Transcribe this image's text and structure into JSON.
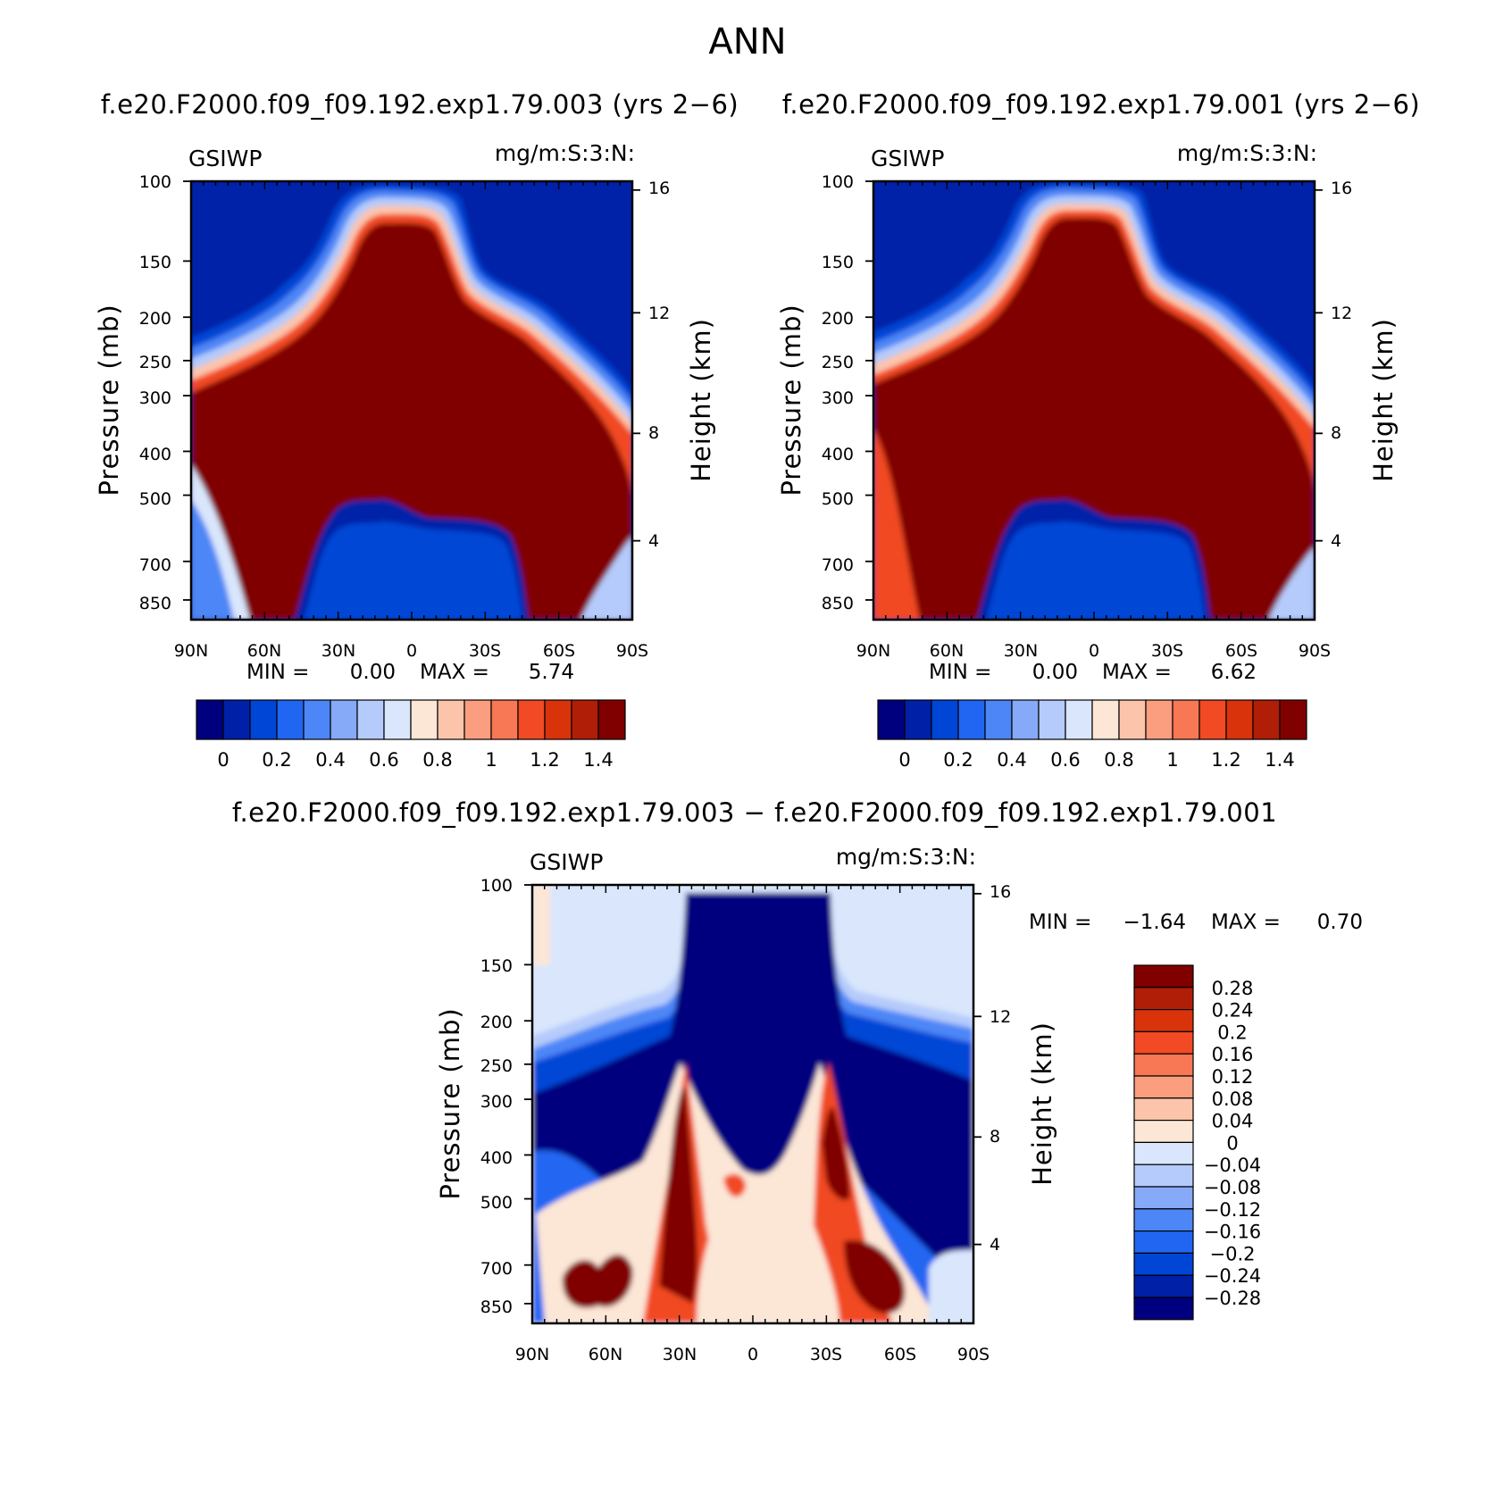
{
  "figure": {
    "title": "ANN"
  },
  "panels": [
    {
      "id": "top-left",
      "subtitle": "f.e20.F2000.f09_f09.192.exp1.79.003 (yrs 2−6)",
      "left_string": "GSIWP",
      "right_string": "mg/m:S:3:N:",
      "stats": {
        "min_label": "MIN =",
        "min": "0.00",
        "max_label": "MAX =",
        "max": "5.74"
      },
      "colorbar_labels": [
        "0",
        "0.2",
        "0.4",
        "0.6",
        "0.8",
        "1",
        "1.2",
        "1.4"
      ]
    },
    {
      "id": "top-right",
      "subtitle": "f.e20.F2000.f09_f09.192.exp1.79.001 (yrs 2−6)",
      "left_string": "GSIWP",
      "right_string": "mg/m:S:3:N:",
      "stats": {
        "min_label": "MIN =",
        "min": "0.00",
        "max_label": "MAX =",
        "max": "6.62"
      },
      "colorbar_labels": [
        "0",
        "0.2",
        "0.4",
        "0.6",
        "0.8",
        "1",
        "1.2",
        "1.4"
      ]
    },
    {
      "id": "difference",
      "subtitle": "f.e20.F2000.f09_f09.192.exp1.79.003 − f.e20.F2000.f09_f09.192.exp1.79.001",
      "left_string": "GSIWP",
      "right_string": "mg/m:S:3:N:",
      "stats": {
        "min_label": "MIN =",
        "min": "−1.64",
        "max_label": "MAX =",
        "max": "0.70"
      },
      "colorbar_labels": [
        "0.28",
        "0.24",
        "0.2",
        "0.16",
        "0.12",
        "0.08",
        "0.04",
        "0",
        "−0.04",
        "−0.08",
        "−0.12",
        "−0.16",
        "−0.2",
        "−0.24",
        "−0.28"
      ]
    }
  ],
  "axes": {
    "xlabels": [
      "90N",
      "60N",
      "30N",
      "0",
      "30S",
      "60S",
      "90S"
    ],
    "ylabel": "Pressure (mb)",
    "ylabel2": "Height (km)",
    "pressure_ticks": [
      "100",
      "150",
      "200",
      "250",
      "300",
      "400",
      "500",
      "700",
      "850"
    ],
    "height_ticks": [
      "16",
      "12",
      "8",
      "4"
    ]
  },
  "colors": {
    "abs_palette": [
      "#00007f",
      "#0020a8",
      "#0046d6",
      "#2166f2",
      "#4d86f6",
      "#86a9f8",
      "#b5cbfb",
      "#d9e6fc",
      "#fce6d6",
      "#fcc5ab",
      "#fb9e7f",
      "#f87754",
      "#f14a24",
      "#d9330c",
      "#b01e08",
      "#800000"
    ],
    "diff_palette": [
      "#800000",
      "#b01e08",
      "#d9330c",
      "#f14a24",
      "#f87754",
      "#fb9e7f",
      "#fcc5ab",
      "#fce6d6",
      "#d9e6fc",
      "#b5cbfb",
      "#86a9f8",
      "#4d86f6",
      "#2166f2",
      "#0046d6",
      "#0020a8",
      "#00007f"
    ]
  },
  "chart_data": [
    {
      "type": "heatmap",
      "title": "f.e20.F2000.f09_f09.192.exp1.79.003 (yrs 2−6)",
      "variable": "GSIWP",
      "units": "mg/m:S:3:N:",
      "x": [
        "90N",
        "60N",
        "30N",
        "0",
        "30S",
        "60S",
        "90S"
      ],
      "x_range": [
        90,
        -90
      ],
      "y_pressure_mb": [
        100,
        150,
        200,
        250,
        300,
        400,
        500,
        700,
        850
      ],
      "y_range_mb": [
        100,
        925
      ],
      "y2_height_km": [
        16,
        12,
        8,
        4
      ],
      "contour_levels": [
        0,
        0.1,
        0.2,
        0.3,
        0.4,
        0.5,
        0.6,
        0.7,
        0.8,
        0.9,
        1.0,
        1.1,
        1.2,
        1.3,
        1.4
      ],
      "min": 0.0,
      "max": 5.74,
      "structure": "Ice content >1.4 in a broad arch from ~100-150 mb in the tropics down to the surface at 60N-75N and 50S-65S; near zero below ~550 mb between 30N and 30S and above the arch."
    },
    {
      "type": "heatmap",
      "title": "f.e20.F2000.f09_f09.192.exp1.79.001 (yrs 2−6)",
      "variable": "GSIWP",
      "units": "mg/m:S:3:N:",
      "x": [
        "90N",
        "60N",
        "30N",
        "0",
        "30S",
        "60S",
        "90S"
      ],
      "x_range": [
        90,
        -90
      ],
      "y_pressure_mb": [
        100,
        150,
        200,
        250,
        300,
        400,
        500,
        700,
        850
      ],
      "y_range_mb": [
        100,
        925
      ],
      "y2_height_km": [
        16,
        12,
        8,
        4
      ],
      "contour_levels": [
        0,
        0.1,
        0.2,
        0.3,
        0.4,
        0.5,
        0.6,
        0.7,
        0.8,
        0.9,
        1.0,
        1.1,
        1.2,
        1.3,
        1.4
      ],
      "min": 0.0,
      "max": 6.62,
      "structure": "Same arch pattern as run 003 with slightly larger values and a broader high-latitude maximum."
    },
    {
      "type": "heatmap",
      "title": "f.e20.F2000.f09_f09.192.exp1.79.003 − f.e20.F2000.f09_f09.192.exp1.79.001",
      "variable": "GSIWP",
      "units": "mg/m:S:3:N:",
      "x": [
        "90N",
        "60N",
        "30N",
        "0",
        "30S",
        "60S",
        "90S"
      ],
      "x_range": [
        90,
        -90
      ],
      "y_pressure_mb": [
        100,
        150,
        200,
        250,
        300,
        400,
        500,
        700,
        850
      ],
      "y_range_mb": [
        100,
        925
      ],
      "y2_height_km": [
        16,
        12,
        8,
        4
      ],
      "contour_levels": [
        -0.28,
        -0.24,
        -0.2,
        -0.16,
        -0.12,
        -0.08,
        -0.04,
        0,
        0.04,
        0.08,
        0.12,
        0.16,
        0.2,
        0.24,
        0.28
      ],
      "min": -1.64,
      "max": 0.7,
      "structure": "Strong negative differences (< -0.28) in the upper tropical column 100-400 mb and in the mid-latitude upper troposphere; positive differences (>0.28) in narrow columns near 30N and 30S and near the surface at 60N-75N and 40S-60S."
    }
  ]
}
